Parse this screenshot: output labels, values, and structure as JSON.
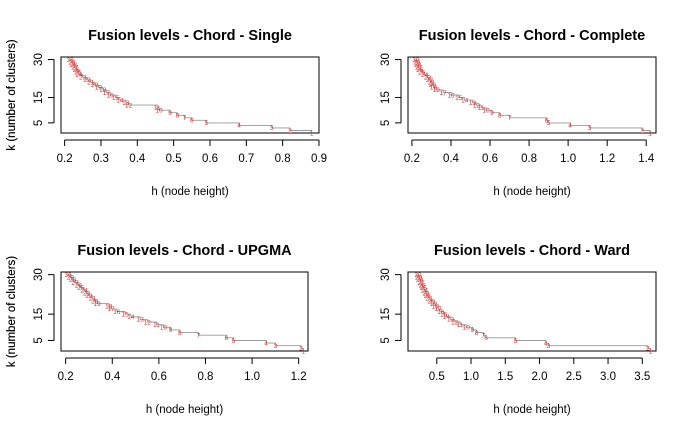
{
  "chart_data": [
    {
      "type": "line",
      "title": "Fusion levels - Chord - Single",
      "xlabel": "h (node height)",
      "ylabel": "k (number of clusters)",
      "xlim": [
        0.19,
        0.9
      ],
      "ylim": [
        1,
        31
      ],
      "xticks": [
        "0.2",
        "0.3",
        "0.4",
        "0.5",
        "0.6",
        "0.7",
        "0.8",
        "0.9"
      ],
      "xtick_values": [
        0.2,
        0.3,
        0.4,
        0.5,
        0.6,
        0.7,
        0.8,
        0.9
      ],
      "yticks": [
        "5",
        "15",
        "30"
      ],
      "ytick_values": [
        5,
        15,
        30
      ],
      "grid": false,
      "line_color": "#999999",
      "label_color": "#dd3333",
      "x": [
        0.215,
        0.22,
        0.224,
        0.228,
        0.232,
        0.236,
        0.24,
        0.25,
        0.262,
        0.272,
        0.283,
        0.293,
        0.305,
        0.315,
        0.325,
        0.34,
        0.352,
        0.368,
        0.376,
        0.455,
        0.46,
        0.49,
        0.51,
        0.53,
        0.55,
        0.59,
        0.68,
        0.77,
        0.82,
        0.88
      ],
      "y": [
        30,
        29,
        28,
        27,
        26,
        25,
        24,
        23,
        22,
        21,
        20,
        19,
        18,
        17,
        16,
        15,
        14,
        13,
        12,
        11,
        10,
        9,
        8,
        7,
        6,
        5,
        4,
        3,
        2,
        1
      ],
      "point_labels": [
        "30",
        "29",
        "28",
        "27",
        "26",
        "25",
        "24",
        "23",
        "22",
        "21",
        "20",
        "19",
        "18",
        "17",
        "16",
        "15",
        "14",
        "13",
        "12",
        "11",
        "10",
        "9",
        "8",
        "7",
        "6",
        "5",
        "4",
        "3",
        "2",
        "1"
      ]
    },
    {
      "type": "line",
      "title": "Fusion levels - Chord - Complete",
      "xlabel": "h (node height)",
      "ylabel": "k (number of clusters)",
      "xlim": [
        0.18,
        1.45
      ],
      "ylim": [
        1,
        31
      ],
      "xticks": [
        "0.2",
        "0.4",
        "0.6",
        "0.8",
        "1.0",
        "1.2",
        "1.4"
      ],
      "xtick_values": [
        0.2,
        0.4,
        0.6,
        0.8,
        1.0,
        1.2,
        1.4
      ],
      "yticks": [
        "5",
        "15",
        "30"
      ],
      "ytick_values": [
        5,
        15,
        30
      ],
      "grid": false,
      "line_color": "#999999",
      "label_color": "#dd3333",
      "x": [
        0.22,
        0.225,
        0.23,
        0.235,
        0.24,
        0.25,
        0.265,
        0.28,
        0.29,
        0.3,
        0.305,
        0.31,
        0.325,
        0.36,
        0.4,
        0.44,
        0.47,
        0.51,
        0.53,
        0.555,
        0.58,
        0.61,
        0.65,
        0.7,
        0.89,
        0.9,
        1.01,
        1.11,
        1.38,
        1.42
      ],
      "y": [
        30,
        29,
        28,
        27,
        26,
        25,
        24,
        23,
        22,
        21,
        20,
        19,
        18,
        17,
        16,
        15,
        14,
        13,
        12,
        11,
        10,
        9,
        8,
        7,
        6,
        5,
        4,
        3,
        2,
        1
      ],
      "point_labels": [
        "30",
        "29",
        "28",
        "27",
        "26",
        "25",
        "24",
        "23",
        "22",
        "21",
        "20",
        "19",
        "18",
        "17",
        "16",
        "15",
        "14",
        "13",
        "12",
        "11",
        "10",
        "9",
        "8",
        "7",
        "6",
        "5",
        "4",
        "3",
        "2",
        "1"
      ]
    },
    {
      "type": "line",
      "title": "Fusion levels - Chord - UPGMA",
      "xlabel": "h (node height)",
      "ylabel": "k (number of clusters)",
      "xlim": [
        0.18,
        1.24
      ],
      "ylim": [
        1,
        31
      ],
      "xticks": [
        "0.2",
        "0.4",
        "0.6",
        "0.8",
        "1.0",
        "1.2"
      ],
      "xtick_values": [
        0.2,
        0.4,
        0.6,
        0.8,
        1.0,
        1.2
      ],
      "yticks": [
        "5",
        "15",
        "30"
      ],
      "ytick_values": [
        5,
        15,
        30
      ],
      "grid": false,
      "line_color": "#999999",
      "label_color": "#dd3333",
      "x": [
        0.21,
        0.22,
        0.23,
        0.24,
        0.255,
        0.265,
        0.28,
        0.29,
        0.3,
        0.315,
        0.325,
        0.335,
        0.385,
        0.395,
        0.42,
        0.455,
        0.48,
        0.52,
        0.55,
        0.59,
        0.62,
        0.65,
        0.69,
        0.77,
        0.89,
        0.92,
        1.06,
        1.1,
        1.21,
        1.22
      ],
      "y": [
        30,
        29,
        28,
        27,
        26,
        25,
        24,
        23,
        22,
        21,
        20,
        19,
        18,
        17,
        16,
        15,
        14,
        13,
        12,
        11,
        10,
        9,
        8,
        7,
        6,
        5,
        4,
        3,
        2,
        1
      ],
      "point_labels": [
        "30",
        "29",
        "28",
        "27",
        "26",
        "25",
        "24",
        "23",
        "22",
        "21",
        "20",
        "19",
        "18",
        "17",
        "16",
        "15",
        "14",
        "13",
        "12",
        "11",
        "10",
        "9",
        "8",
        "7",
        "6",
        "5",
        "4",
        "3",
        "2",
        "1"
      ]
    },
    {
      "type": "line",
      "title": "Fusion levels - Chord - Ward",
      "xlabel": "h (node height)",
      "ylabel": "k (number of clusters)",
      "xlim": [
        0.08,
        3.7
      ],
      "ylim": [
        1,
        31
      ],
      "xticks": [
        "0.5",
        "1.0",
        "1.5",
        "2.0",
        "2.5",
        "3.0",
        "3.5"
      ],
      "xtick_values": [
        0.5,
        1.0,
        1.5,
        2.0,
        2.5,
        3.0,
        3.5
      ],
      "yticks": [
        "5",
        "15",
        "30"
      ],
      "ytick_values": [
        5,
        15,
        30
      ],
      "grid": false,
      "line_color": "#999999",
      "label_color": "#dd3333",
      "x": [
        0.225,
        0.235,
        0.25,
        0.27,
        0.285,
        0.3,
        0.32,
        0.34,
        0.36,
        0.39,
        0.42,
        0.45,
        0.48,
        0.52,
        0.56,
        0.6,
        0.64,
        0.7,
        0.76,
        0.84,
        0.93,
        1.02,
        1.08,
        1.18,
        1.22,
        1.65,
        2.09,
        2.13,
        3.58,
        3.62
      ],
      "y": [
        30,
        29,
        28,
        27,
        26,
        25,
        24,
        23,
        22,
        21,
        20,
        19,
        18,
        17,
        16,
        15,
        14,
        13,
        12,
        11,
        10,
        9,
        8,
        7,
        6,
        5,
        4,
        3,
        2,
        1
      ],
      "point_labels": [
        "30",
        "29",
        "28",
        "27",
        "26",
        "25",
        "24",
        "23",
        "22",
        "21",
        "20",
        "19",
        "18",
        "17",
        "16",
        "15",
        "14",
        "13",
        "12",
        "11",
        "10",
        "9",
        "8",
        "7",
        "6",
        "5",
        "4",
        "3",
        "2",
        "1"
      ]
    }
  ]
}
